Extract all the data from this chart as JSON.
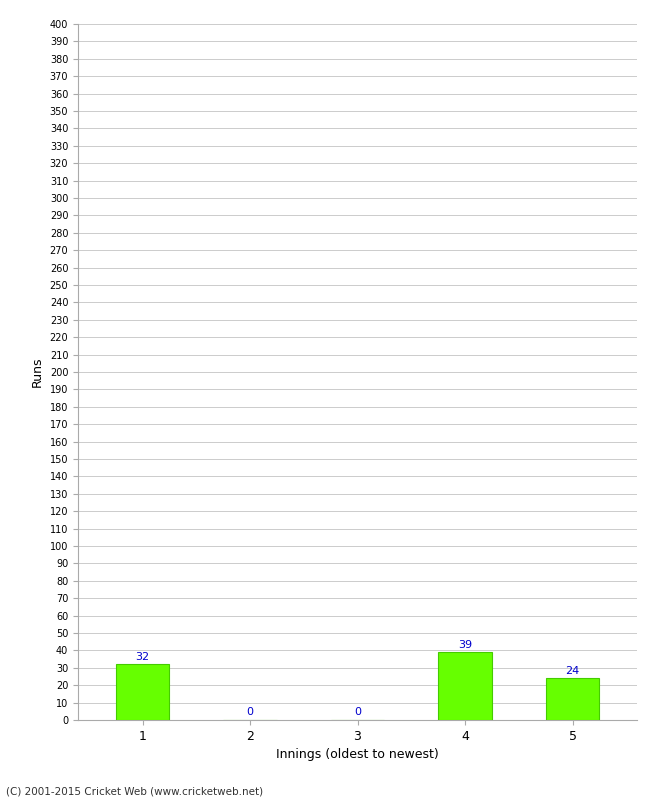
{
  "categories": [
    "1",
    "2",
    "3",
    "4",
    "5"
  ],
  "values": [
    32,
    0,
    0,
    39,
    24
  ],
  "bar_color": "#66ff00",
  "bar_edge_color": "#44cc00",
  "label_color": "#0000cc",
  "xlabel": "Innings (oldest to newest)",
  "ylabel": "Runs",
  "ylim": [
    0,
    400
  ],
  "ytick_step": 10,
  "background_color": "#ffffff",
  "grid_color": "#cccccc",
  "footer": "(C) 2001-2015 Cricket Web (www.cricketweb.net)"
}
